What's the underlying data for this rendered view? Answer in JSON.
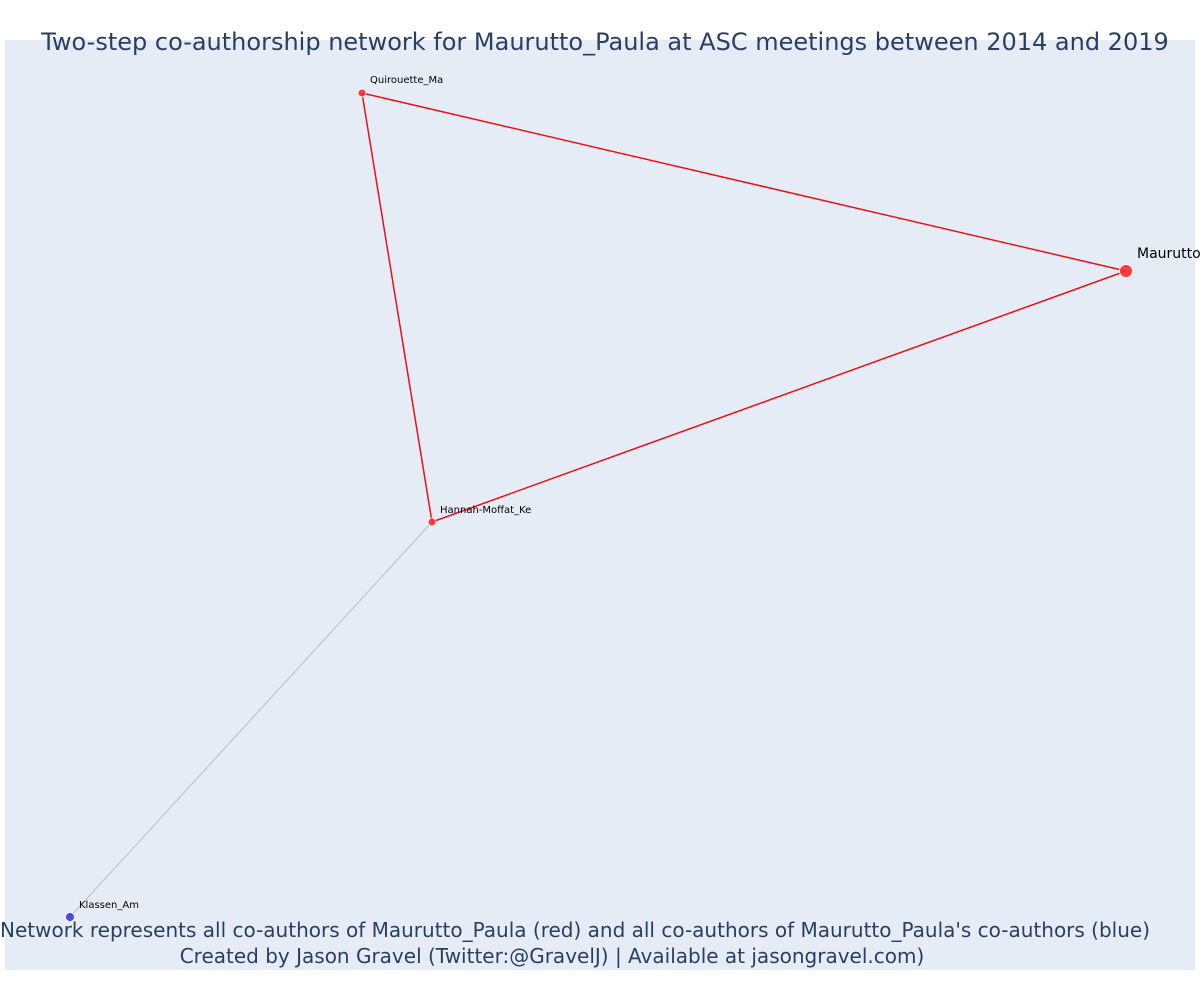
{
  "title": "Two-step co-authorship network for Maurutto_Paula at ASC meetings between 2014 and 2019",
  "caption": {
    "line1": "Network represents all co-authors of Maurutto_Paula (red) and all co-authors of Maurutto_Paula's co-authors (blue)",
    "line2": "Created by Jason Gravel (Twitter:@GravelJ) | Available at jasongravel.com)"
  },
  "colors": {
    "background": "#e5ecf6",
    "title": "#2a3f5f",
    "focal_coauthor": "#ff2d2d",
    "second_step": "#3a3ae8",
    "edge_first_step": "#e8111a",
    "edge_second_step": "#b8bcc8"
  },
  "nodes": [
    {
      "id": "maurutto",
      "label": "Maurutto_Paula",
      "group": "focal"
    },
    {
      "id": "quirouette",
      "label": "Quirouette_Ma",
      "group": "coauthor"
    },
    {
      "id": "hannah",
      "label": "Hannah-Moffat_Ke",
      "group": "coauthor"
    },
    {
      "id": "klassen",
      "label": "Klassen_Am",
      "group": "second_step"
    }
  ],
  "edges": [
    {
      "source": "quirouette",
      "target": "maurutto",
      "type": "first_step"
    },
    {
      "source": "quirouette",
      "target": "hannah",
      "type": "first_step"
    },
    {
      "source": "hannah",
      "target": "maurutto",
      "type": "first_step"
    },
    {
      "source": "hannah",
      "target": "klassen",
      "type": "second_step"
    }
  ]
}
